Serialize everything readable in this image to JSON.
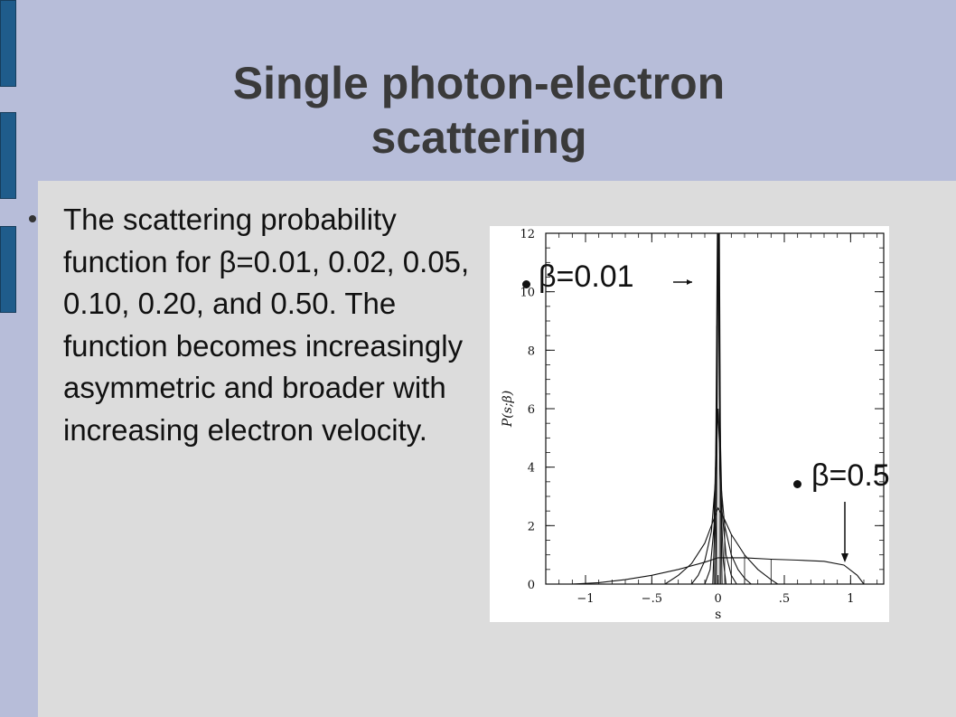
{
  "slide": {
    "title_line1": "Single photon-electron",
    "title_line2": "scattering",
    "bullet": "The scattering probability function for β=0.01, 0.02, 0.05, 0.10, 0.20, and 0.50. The function becomes increasingly asymmetric and broader with increasing electron velocity."
  },
  "annotations": {
    "beta_low": "β=0.01",
    "beta_high": "β=0.5"
  },
  "chart_data": {
    "type": "line",
    "xlabel": "s",
    "ylabel": "P(s;β)",
    "xlim": [
      -1.3,
      1.25
    ],
    "ylim": [
      0,
      12
    ],
    "x_ticks": [
      "−1",
      "−.5",
      "0",
      ".5",
      "1"
    ],
    "x_tick_values": [
      -1,
      -0.5,
      0,
      0.5,
      1
    ],
    "y_ticks": [
      "0",
      "2",
      "4",
      "6",
      "8",
      "10",
      "12"
    ],
    "y_tick_values": [
      0,
      2,
      4,
      6,
      8,
      10,
      12
    ],
    "grid": false,
    "series": [
      {
        "beta": 0.01,
        "x": [
          -0.02,
          -0.01,
          0.0,
          0.01,
          0.02,
          0.03
        ],
        "y": [
          0,
          3.0,
          12,
          12,
          3.0,
          0
        ]
      },
      {
        "beta": 0.02,
        "x": [
          -0.04,
          -0.02,
          -0.005,
          0.005,
          0.02,
          0.04,
          0.06
        ],
        "y": [
          0,
          2.5,
          12,
          12,
          3.0,
          0.8,
          0
        ]
      },
      {
        "beta": 0.05,
        "x": [
          -0.1,
          -0.06,
          -0.03,
          -0.01,
          0.0,
          0.01,
          0.03,
          0.06,
          0.1,
          0.14
        ],
        "y": [
          0,
          0.5,
          2.0,
          6.0,
          12,
          6.5,
          2.5,
          1.0,
          0.3,
          0
        ]
      },
      {
        "beta": 0.1,
        "x": [
          -0.2,
          -0.15,
          -0.1,
          -0.05,
          -0.02,
          0.0,
          0.02,
          0.05,
          0.1,
          0.15,
          0.2,
          0.25
        ],
        "y": [
          0,
          0.3,
          0.8,
          1.8,
          3.5,
          6.0,
          3.5,
          2.0,
          1.0,
          0.5,
          0.2,
          0
        ]
      },
      {
        "beta": 0.2,
        "x": [
          -0.4,
          -0.3,
          -0.2,
          -0.1,
          -0.05,
          0.0,
          0.05,
          0.1,
          0.2,
          0.3,
          0.4,
          0.45
        ],
        "y": [
          0,
          0.3,
          0.7,
          1.4,
          2.0,
          2.6,
          2.2,
          1.7,
          1.0,
          0.5,
          0.15,
          0
        ]
      },
      {
        "beta": 0.5,
        "x": [
          -1.1,
          -0.9,
          -0.7,
          -0.5,
          -0.3,
          -0.1,
          0.0,
          0.2,
          0.4,
          0.6,
          0.8,
          0.95,
          1.05,
          1.1
        ],
        "y": [
          0,
          0.05,
          0.15,
          0.3,
          0.5,
          0.75,
          0.9,
          0.9,
          0.85,
          0.82,
          0.78,
          0.65,
          0.3,
          0
        ]
      }
    ]
  }
}
